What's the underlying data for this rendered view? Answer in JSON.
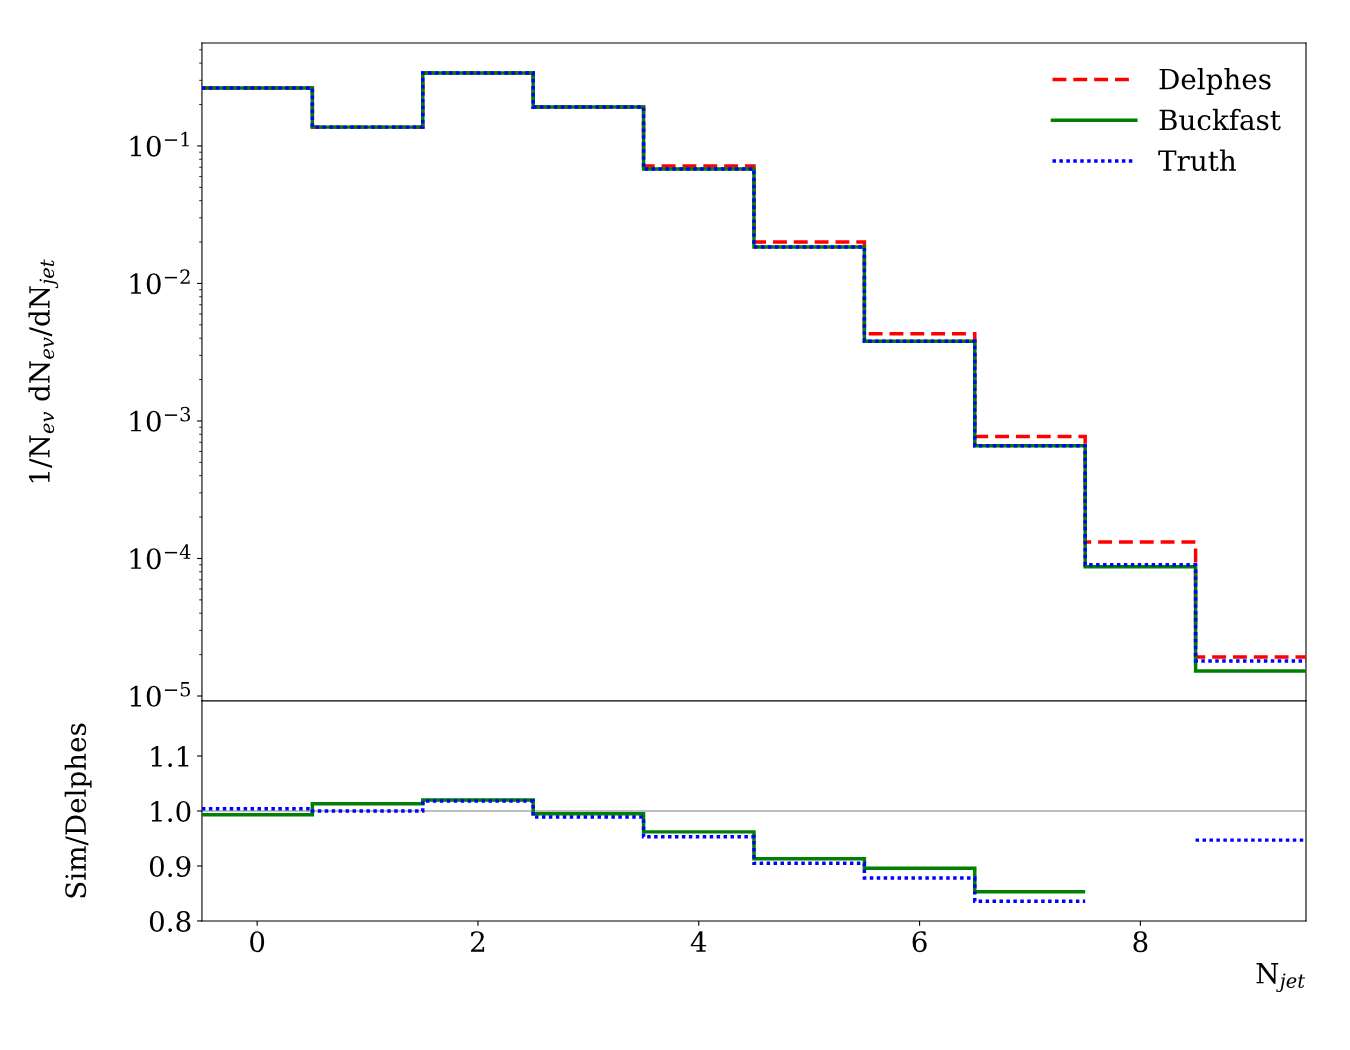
{
  "chart_data": [
    {
      "type": "histogram",
      "ylabel": "1/N$_{ev}$ dN$_{ev}$/dN$_{jet}$",
      "bins": [
        -0.5,
        0.5,
        1.5,
        2.5,
        3.5,
        4.5,
        5.5,
        6.5,
        7.5,
        8.5,
        9.5
      ],
      "series": [
        {
          "name": "Delphes",
          "color": "#ff0000",
          "line_style": "dashed",
          "values": [
            0.264,
            0.137,
            0.339,
            0.192,
            0.0716,
            0.02,
            0.0043,
            0.00077,
            0.000132,
            1.92e-05
          ]
        },
        {
          "name": "Buckfast",
          "color": "#008000",
          "line_style": "solid",
          "values": [
            0.264,
            0.137,
            0.339,
            0.192,
            0.068,
            0.0184,
            0.0038,
            0.00066,
            8.7e-05,
            1.52e-05
          ]
        },
        {
          "name": "Truth",
          "color": "#0000ff",
          "line_style": "dotted",
          "values": [
            0.264,
            0.137,
            0.339,
            0.192,
            0.068,
            0.0184,
            0.0038,
            0.00066,
            9e-05,
            1.8e-05
          ]
        }
      ],
      "log": "y",
      "xlim": [
        -0.5,
        9.5
      ],
      "ylim": [
        9.2e-06,
        0.56
      ],
      "yticks": [
        {
          "value": 0.1,
          "label": "10$^{−1}$"
        },
        {
          "value": 0.01,
          "label": "10$^{−2}$"
        },
        {
          "value": 0.001,
          "label": "10$^{−3}$"
        },
        {
          "value": 0.0001,
          "label": "10$^{−4}$"
        },
        {
          "value": 1e-05,
          "label": "10$^{−5}$"
        }
      ],
      "tick_labels": "y",
      "legend": "top right",
      "grid": false
    },
    {
      "type": "histogram",
      "xlabel": "N$_{jet}$",
      "ylabel": "Sim/Delphes",
      "series": [
        {
          "color": "#008000",
          "line_style": "solid",
          "bins": [
            -0.5,
            0.5,
            1.5,
            2.5,
            3.5,
            4.5,
            5.5,
            6.5,
            7.5
          ],
          "values": [
            0.993,
            1.013,
            1.02,
            0.995,
            0.962,
            0.913,
            0.896,
            0.853
          ]
        },
        {
          "color": "#0000ff",
          "line_style": "dotted",
          "bins": [
            -0.5,
            0.5,
            1.5,
            2.5,
            3.5,
            4.5,
            5.5,
            6.5,
            7.5
          ],
          "values": [
            1.004,
            1.0,
            1.018,
            0.989,
            0.953,
            0.905,
            0.878,
            0.836
          ]
        },
        {
          "type": "line",
          "color": "#0000ff",
          "line_style": "dotted",
          "x": [
            8.5,
            9.5
          ],
          "values": [
            0.947,
            0.947
          ]
        }
      ],
      "xlim": [
        -0.5,
        9.5
      ],
      "ylim": [
        0.8,
        1.2
      ],
      "xticks": [
        0,
        2,
        4,
        6,
        8
      ],
      "yticks": [
        {
          "value": 0.8,
          "label": "0.8"
        },
        {
          "value": 0.9,
          "label": "0.9"
        },
        {
          "value": 1.0,
          "label": "1.0"
        },
        {
          "value": 1.1,
          "label": "1.1"
        }
      ],
      "ref_lines": [
        {
          "axis": "y",
          "value": 1.0,
          "color": "#808080"
        }
      ],
      "grid": false
    }
  ]
}
